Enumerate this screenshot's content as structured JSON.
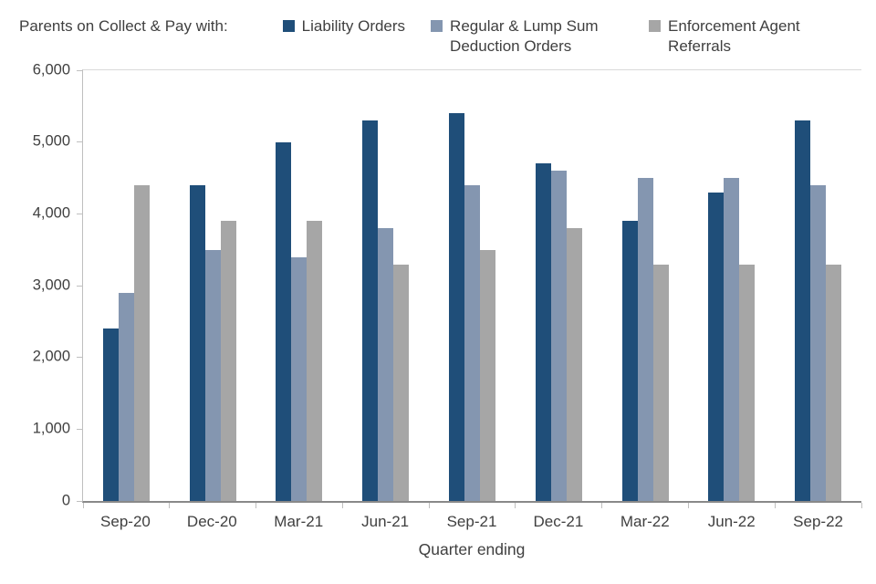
{
  "chart_data": {
    "type": "bar",
    "title": "",
    "legend_label": "Parents on Collect & Pay with:",
    "legend_position": "top",
    "categories": [
      "Sep-20",
      "Dec-20",
      "Mar-21",
      "Jun-21",
      "Sep-21",
      "Dec-21",
      "Mar-22",
      "Jun-22",
      "Sep-22"
    ],
    "series": [
      {
        "name": "Liability Orders",
        "color": "#1F4E79",
        "values": [
          2400,
          4400,
          5000,
          5300,
          5400,
          4700,
          3900,
          4300,
          5300
        ]
      },
      {
        "name": "Regular & Lump Sum Deduction Orders",
        "color": "#8496B0",
        "values": [
          2900,
          3500,
          3400,
          3800,
          4400,
          4600,
          4500,
          4500,
          4400
        ]
      },
      {
        "name": "Enforcement Agent Referrals",
        "color": "#A6A6A6",
        "values": [
          4400,
          3900,
          3900,
          3300,
          3500,
          3800,
          3300,
          3300,
          3300
        ]
      }
    ],
    "xlabel": "Quarter ending",
    "ylabel": "",
    "ylim": [
      0,
      6000
    ],
    "ytick_step": 1000,
    "yticks": [
      "0",
      "1,000",
      "2,000",
      "3,000",
      "4,000",
      "5,000",
      "6,000"
    ],
    "grid": "top-line-only",
    "colors": {
      "text": "#404040",
      "axis": "#898989",
      "tick": "#BFBFBF",
      "top_gridline": "#D9D9D9"
    }
  }
}
